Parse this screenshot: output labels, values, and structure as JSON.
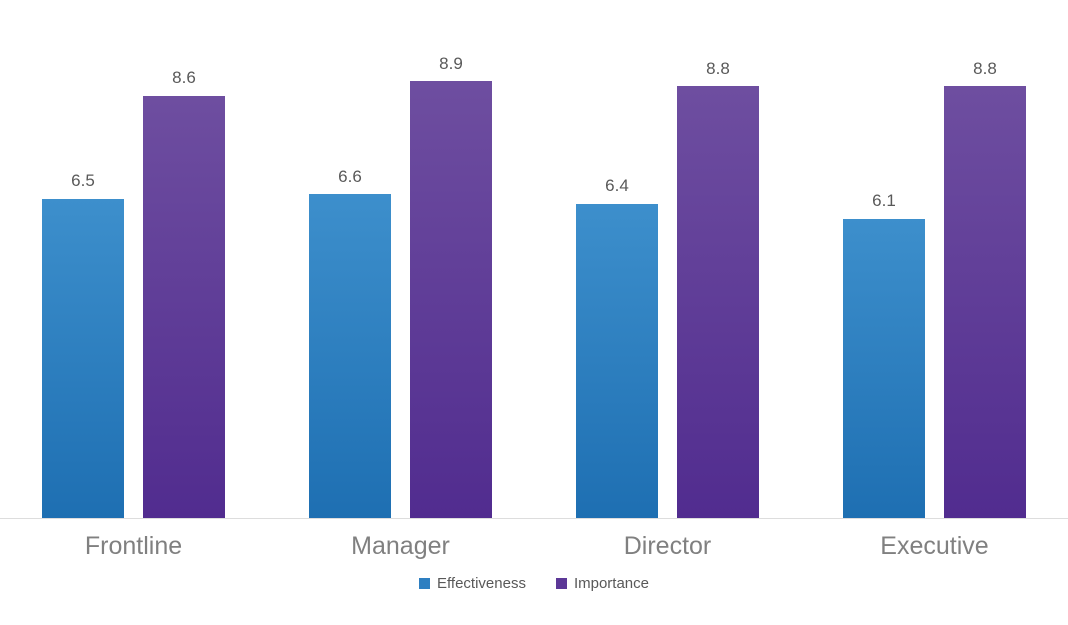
{
  "chart_data": {
    "type": "bar",
    "categories": [
      "Frontline",
      "Manager",
      "Director",
      "Executive"
    ],
    "series": [
      {
        "name": "Effectiveness",
        "values": [
          6.5,
          6.6,
          6.4,
          6.1
        ],
        "gradient_top": "#3d8fcc",
        "gradient_bottom": "#1e6fb2",
        "legend_color": "#2e7fc1"
      },
      {
        "name": "Importance",
        "values": [
          8.6,
          8.9,
          8.8,
          8.8
        ],
        "gradient_top": "#6e4ea0",
        "gradient_bottom": "#512c8f",
        "legend_color": "#5c3897"
      }
    ],
    "title": "",
    "xlabel": "",
    "ylabel": "",
    "ylim": [
      0,
      10
    ],
    "grid": false,
    "legend_position": "bottom",
    "data_label_decimals": 1,
    "axis_line_color": "#dddddd"
  }
}
